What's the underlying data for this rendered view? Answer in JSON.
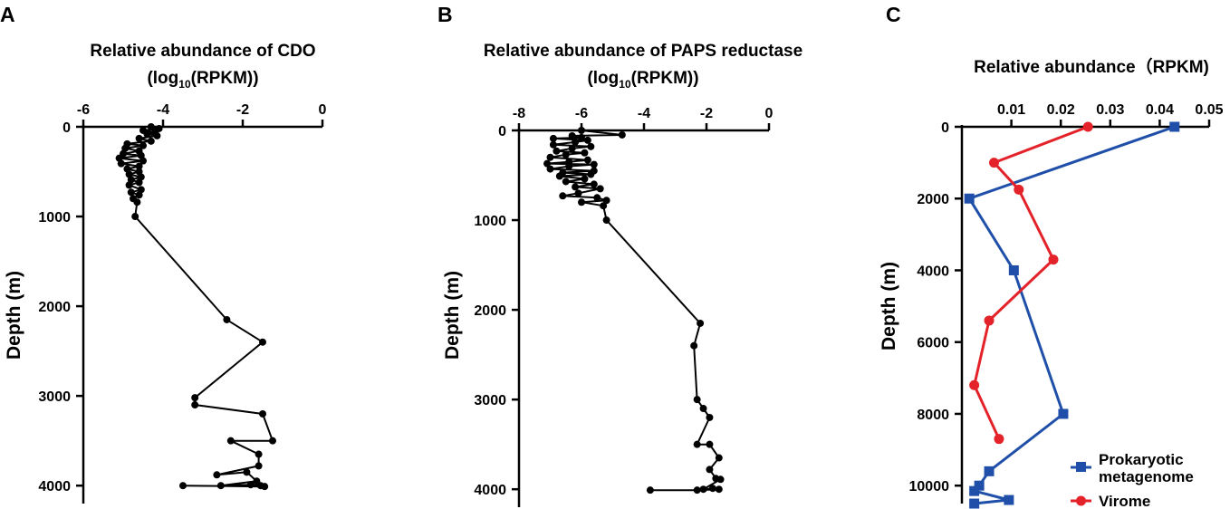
{
  "chart_data": [
    {
      "panel": "A",
      "type": "line",
      "title_line1": "Relative abundance of CDO",
      "title_line2_pre": "(log",
      "title_line2_sub": "10",
      "title_line2_post": "(RPKM))",
      "ylabel": "Depth (m)",
      "x_axis_position": "top",
      "xlim": [
        -6,
        0
      ],
      "ylim": [
        0,
        4200
      ],
      "y_inverted": true,
      "xticks": [
        -6,
        -4,
        -2,
        0
      ],
      "yticks": [
        0,
        1000,
        2000,
        3000,
        4000
      ],
      "color": "#000000",
      "marker": "circle",
      "points": [
        {
          "x": -4.3,
          "y": 0
        },
        {
          "x": -4.1,
          "y": 20
        },
        {
          "x": -4.5,
          "y": 40
        },
        {
          "x": -4.2,
          "y": 60
        },
        {
          "x": -4.4,
          "y": 80
        },
        {
          "x": -4.15,
          "y": 100
        },
        {
          "x": -4.6,
          "y": 130
        },
        {
          "x": -4.3,
          "y": 160
        },
        {
          "x": -4.9,
          "y": 190
        },
        {
          "x": -4.5,
          "y": 210
        },
        {
          "x": -4.95,
          "y": 240
        },
        {
          "x": -4.6,
          "y": 270
        },
        {
          "x": -5.0,
          "y": 300
        },
        {
          "x": -4.55,
          "y": 320
        },
        {
          "x": -5.1,
          "y": 350
        },
        {
          "x": -4.5,
          "y": 380
        },
        {
          "x": -5.05,
          "y": 410
        },
        {
          "x": -4.6,
          "y": 440
        },
        {
          "x": -4.9,
          "y": 470
        },
        {
          "x": -4.6,
          "y": 500
        },
        {
          "x": -4.85,
          "y": 530
        },
        {
          "x": -4.55,
          "y": 560
        },
        {
          "x": -4.8,
          "y": 590
        },
        {
          "x": -4.6,
          "y": 620
        },
        {
          "x": -4.85,
          "y": 650
        },
        {
          "x": -4.55,
          "y": 700
        },
        {
          "x": -4.8,
          "y": 730
        },
        {
          "x": -4.6,
          "y": 760
        },
        {
          "x": -4.75,
          "y": 800
        },
        {
          "x": -4.65,
          "y": 840
        },
        {
          "x": -4.7,
          "y": 1000
        },
        {
          "x": -2.4,
          "y": 2150
        },
        {
          "x": -1.5,
          "y": 2400
        },
        {
          "x": -3.2,
          "y": 3020
        },
        {
          "x": -3.2,
          "y": 3100
        },
        {
          "x": -1.5,
          "y": 3200
        },
        {
          "x": -1.25,
          "y": 3500
        },
        {
          "x": -2.3,
          "y": 3500
        },
        {
          "x": -1.6,
          "y": 3650
        },
        {
          "x": -1.6,
          "y": 3780
        },
        {
          "x": -2.65,
          "y": 3880
        },
        {
          "x": -1.9,
          "y": 3850
        },
        {
          "x": -1.65,
          "y": 3950
        },
        {
          "x": -2.55,
          "y": 4000
        },
        {
          "x": -1.8,
          "y": 3990
        },
        {
          "x": -1.55,
          "y": 4000
        },
        {
          "x": -1.45,
          "y": 4010
        },
        {
          "x": -3.5,
          "y": 4000
        }
      ]
    },
    {
      "panel": "B",
      "type": "line",
      "title_line1": "Relative abundance of PAPS reductase",
      "title_line2_pre": "(log",
      "title_line2_sub": "10",
      "title_line2_post": "(RPKM))",
      "ylabel": "Depth (m)",
      "x_axis_position": "top",
      "xlim": [
        -8,
        0
      ],
      "ylim": [
        0,
        4200
      ],
      "y_inverted": true,
      "xticks": [
        -8,
        -6,
        -4,
        -2,
        0
      ],
      "yticks": [
        0,
        1000,
        2000,
        3000,
        4000
      ],
      "color": "#000000",
      "marker": "circle",
      "points": [
        {
          "x": -6.0,
          "y": 0
        },
        {
          "x": -4.7,
          "y": 50
        },
        {
          "x": -6.3,
          "y": 60
        },
        {
          "x": -6.0,
          "y": 80
        },
        {
          "x": -6.9,
          "y": 90
        },
        {
          "x": -5.8,
          "y": 110
        },
        {
          "x": -6.2,
          "y": 130
        },
        {
          "x": -6.9,
          "y": 160
        },
        {
          "x": -5.7,
          "y": 180
        },
        {
          "x": -6.3,
          "y": 200
        },
        {
          "x": -6.8,
          "y": 230
        },
        {
          "x": -5.9,
          "y": 250
        },
        {
          "x": -6.5,
          "y": 270
        },
        {
          "x": -7.0,
          "y": 300
        },
        {
          "x": -5.8,
          "y": 330
        },
        {
          "x": -6.4,
          "y": 350
        },
        {
          "x": -7.1,
          "y": 370
        },
        {
          "x": -5.6,
          "y": 380
        },
        {
          "x": -6.4,
          "y": 400
        },
        {
          "x": -7.0,
          "y": 430
        },
        {
          "x": -5.6,
          "y": 450
        },
        {
          "x": -6.6,
          "y": 470
        },
        {
          "x": -5.7,
          "y": 490
        },
        {
          "x": -6.7,
          "y": 510
        },
        {
          "x": -5.9,
          "y": 540
        },
        {
          "x": -6.5,
          "y": 570
        },
        {
          "x": -5.6,
          "y": 600
        },
        {
          "x": -6.2,
          "y": 630
        },
        {
          "x": -5.4,
          "y": 650
        },
        {
          "x": -6.1,
          "y": 700
        },
        {
          "x": -6.6,
          "y": 730
        },
        {
          "x": -5.5,
          "y": 750
        },
        {
          "x": -5.2,
          "y": 780
        },
        {
          "x": -6.0,
          "y": 800
        },
        {
          "x": -5.3,
          "y": 840
        },
        {
          "x": -5.2,
          "y": 1000
        },
        {
          "x": -2.2,
          "y": 2150
        },
        {
          "x": -2.4,
          "y": 2400
        },
        {
          "x": -2.3,
          "y": 3000
        },
        {
          "x": -2.1,
          "y": 3100
        },
        {
          "x": -1.9,
          "y": 3200
        },
        {
          "x": -2.3,
          "y": 3500
        },
        {
          "x": -1.9,
          "y": 3500
        },
        {
          "x": -1.6,
          "y": 3650
        },
        {
          "x": -1.9,
          "y": 3780
        },
        {
          "x": -1.7,
          "y": 3880
        },
        {
          "x": -1.55,
          "y": 3890
        },
        {
          "x": -2.1,
          "y": 4000
        },
        {
          "x": -1.8,
          "y": 3990
        },
        {
          "x": -1.6,
          "y": 4000
        },
        {
          "x": -2.3,
          "y": 4010
        },
        {
          "x": -3.8,
          "y": 4010
        }
      ]
    },
    {
      "panel": "C",
      "type": "line",
      "title": "Relative abundance（RPKM)",
      "ylabel": "Depth (m)",
      "x_axis_position": "top",
      "xlim": [
        0,
        0.05
      ],
      "ylim": [
        0,
        10500
      ],
      "y_inverted": true,
      "xticks": [
        0.01,
        0.02,
        0.03,
        0.04,
        0.05
      ],
      "yticks": [
        0,
        2000,
        4000,
        6000,
        8000,
        10000
      ],
      "legend_position": "bottom-right",
      "series": [
        {
          "name": "Prokaryotic metagenome",
          "legend_line1": "Prokaryotic",
          "legend_line2": "metagenome",
          "color": "#1f4fa8",
          "marker": "square",
          "points": [
            {
              "x": 0.043,
              "y": 0
            },
            {
              "x": 0.0015,
              "y": 2000
            },
            {
              "x": 0.0105,
              "y": 4000
            },
            {
              "x": 0.0205,
              "y": 8000
            },
            {
              "x": 0.0055,
              "y": 9600
            },
            {
              "x": 0.0035,
              "y": 10000
            },
            {
              "x": 0.0025,
              "y": 10150
            },
            {
              "x": 0.0095,
              "y": 10400
            },
            {
              "x": 0.0025,
              "y": 10500
            }
          ]
        },
        {
          "name": "Virome",
          "legend_line1": "Virome",
          "color": "#e32229",
          "marker": "circle",
          "points": [
            {
              "x": 0.0255,
              "y": 0
            },
            {
              "x": 0.0065,
              "y": 1000
            },
            {
              "x": 0.0115,
              "y": 1750
            },
            {
              "x": 0.0185,
              "y": 3700
            },
            {
              "x": 0.0055,
              "y": 5400
            },
            {
              "x": 0.0025,
              "y": 7200
            },
            {
              "x": 0.0075,
              "y": 8700
            }
          ]
        }
      ]
    }
  ]
}
